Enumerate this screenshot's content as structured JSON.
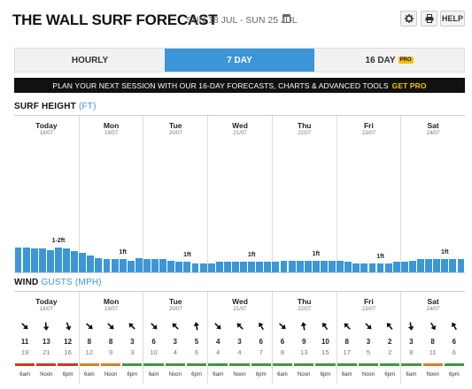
{
  "header": {
    "title": "THE WALL SURF FORECAST",
    "date_range": "SUN 18 JUL - SUN 25 JUL",
    "settings_icon": "gear-icon",
    "print_icon": "print-icon",
    "help_label": "HELP"
  },
  "tabs": [
    {
      "label": "HOURLY",
      "active": false
    },
    {
      "label": "7 DAY",
      "active": true
    },
    {
      "label": "16 DAY",
      "active": false,
      "badge": "PRO"
    }
  ],
  "banner": {
    "text": "PLAN YOUR NEXT SESSION WITH OUR 16-DAY FORECASTS, CHARTS & ADVANCED TOOLS",
    "cta": "GET PRO"
  },
  "surf": {
    "title": "SURF HEIGHT",
    "unit": "(FT)",
    "bar_color": "#3c96d8",
    "max_ft": 10,
    "heights": [
      1.9,
      1.9,
      1.8,
      1.8,
      1.7,
      1.9,
      1.8,
      1.6,
      1.5,
      1.3,
      1.1,
      1.0,
      1.0,
      1.0,
      0.9,
      1.1,
      1.0,
      1.0,
      1.0,
      0.9,
      0.8,
      0.8,
      0.7,
      0.7,
      0.7,
      0.8,
      0.8,
      0.8,
      0.8,
      0.8,
      0.8,
      0.8,
      0.8,
      0.9,
      0.9,
      0.9,
      0.9,
      0.9,
      0.9,
      0.9,
      0.9,
      0.8,
      0.7,
      0.7,
      0.7,
      0.7,
      0.7,
      0.8,
      0.8,
      0.9,
      1.0,
      1.0,
      1.0,
      1.0,
      1.0,
      1.0
    ],
    "labels": [
      {
        "text": "1-2ft",
        "bar": 5
      },
      {
        "text": "1ft",
        "bar": 13
      },
      {
        "text": "1ft",
        "bar": 21
      },
      {
        "text": "1ft",
        "bar": 29
      },
      {
        "text": "1ft",
        "bar": 37
      },
      {
        "text": "1ft",
        "bar": 45
      },
      {
        "text": "1ft",
        "bar": 53
      }
    ]
  },
  "days": [
    {
      "name": "Today",
      "date": "18/07"
    },
    {
      "name": "Mon",
      "date": "19/07"
    },
    {
      "name": "Tue",
      "date": "20/07"
    },
    {
      "name": "Wed",
      "date": "21/07"
    },
    {
      "name": "Thu",
      "date": "22/07"
    },
    {
      "name": "Fri",
      "date": "23/07"
    },
    {
      "name": "Sat",
      "date": "24/07"
    }
  ],
  "wind": {
    "title": "WIND",
    "subtitle": "GUSTS",
    "unit": "(MPH)",
    "arrow_icon": "wind-direction-arrow-icon",
    "time_labels": [
      "6am",
      "Noon",
      "6pm"
    ],
    "colors": {
      "red": "#cc3a1e",
      "orange": "#e07b24",
      "green": "#3f9a3c"
    },
    "readings": [
      {
        "speed": "11",
        "gust": "19",
        "dir": 135,
        "band": "red"
      },
      {
        "speed": "13",
        "gust": "21",
        "dir": 175,
        "band": "red"
      },
      {
        "speed": "12",
        "gust": "16",
        "dir": 160,
        "band": "red"
      },
      {
        "speed": "8",
        "gust": "12",
        "dir": 130,
        "band": "orange"
      },
      {
        "speed": "8",
        "gust": "9",
        "dir": 135,
        "band": "orange"
      },
      {
        "speed": "3",
        "gust": "3",
        "dir": 315,
        "band": "green"
      },
      {
        "speed": "6",
        "gust": "10",
        "dir": 135,
        "band": "green"
      },
      {
        "speed": "3",
        "gust": "4",
        "dir": 315,
        "band": "green"
      },
      {
        "speed": "5",
        "gust": "6",
        "dir": 350,
        "band": "green"
      },
      {
        "speed": "4",
        "gust": "4",
        "dir": 135,
        "band": "green"
      },
      {
        "speed": "3",
        "gust": "4",
        "dir": 315,
        "band": "green"
      },
      {
        "speed": "6",
        "gust": "7",
        "dir": 330,
        "band": "green"
      },
      {
        "speed": "6",
        "gust": "8",
        "dir": 130,
        "band": "green"
      },
      {
        "speed": "9",
        "gust": "13",
        "dir": 350,
        "band": "green"
      },
      {
        "speed": "10",
        "gust": "15",
        "dir": 325,
        "band": "green"
      },
      {
        "speed": "8",
        "gust": "17",
        "dir": 315,
        "band": "green"
      },
      {
        "speed": "3",
        "gust": "5",
        "dir": 135,
        "band": "green"
      },
      {
        "speed": "2",
        "gust": "2",
        "dir": 320,
        "band": "green"
      },
      {
        "speed": "3",
        "gust": "8",
        "dir": 170,
        "band": "green"
      },
      {
        "speed": "8",
        "gust": "11",
        "dir": 150,
        "band": "orange"
      },
      {
        "speed": "6",
        "gust": "6",
        "dir": 330,
        "band": "green"
      }
    ]
  }
}
